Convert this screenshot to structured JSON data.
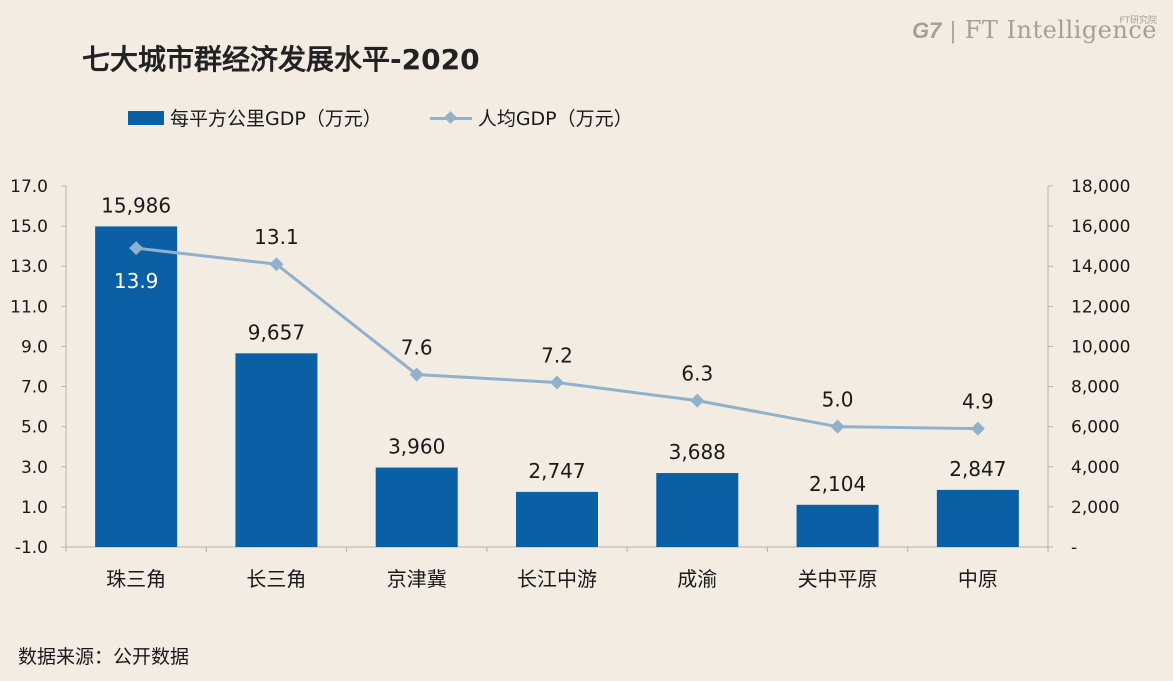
{
  "title": "七大城市群经济发展水平-2020",
  "brand": {
    "g7": "G7",
    "separator": "|",
    "name": "FT Intelligence",
    "sub": "FT研究院"
  },
  "legend": {
    "bar_label": "每平方公里GDP（万元）",
    "line_label": "人均GDP（万元）"
  },
  "source": "数据来源：公开数据",
  "colors": {
    "bar": "#0b5fa5",
    "line": "#8fb1cb",
    "background": "#f2ece3",
    "axis": "#b8b2aa"
  },
  "chart_data": {
    "type": "bar",
    "categories": [
      "珠三角",
      "长三角",
      "京津冀",
      "长江中游",
      "成渝",
      "关中平原",
      "中原"
    ],
    "series": [
      {
        "name": "每平方公里GDP（万元）",
        "type": "bar",
        "axis": "right",
        "values": [
          15986,
          9657,
          3960,
          2747,
          3688,
          2104,
          2847
        ],
        "labels": [
          "15,986",
          "9,657",
          "3,960",
          "2,747",
          "3,688",
          "2,104",
          "2,847"
        ]
      },
      {
        "name": "人均GDP（万元）",
        "type": "line",
        "axis": "left",
        "values": [
          13.9,
          13.1,
          7.6,
          7.2,
          6.3,
          5.0,
          4.9
        ],
        "labels": [
          "13.9",
          "13.1",
          "7.6",
          "7.2",
          "6.3",
          "5.0",
          "4.9"
        ]
      }
    ],
    "left_axis": {
      "ylim": [
        -1.0,
        17.0
      ],
      "ticks": [
        "17.0",
        "15.0",
        "13.0",
        "11.0",
        "9.0",
        "7.0",
        "5.0",
        "3.0",
        "1.0",
        "-1.0"
      ]
    },
    "right_axis": {
      "ylim": [
        0,
        18000
      ],
      "ticks": [
        "18,000",
        "16,000",
        "14,000",
        "12,000",
        "10,000",
        "8,000",
        "6,000",
        "4,000",
        "2,000",
        "-"
      ]
    },
    "grid": false,
    "legend_position": "top-left"
  }
}
